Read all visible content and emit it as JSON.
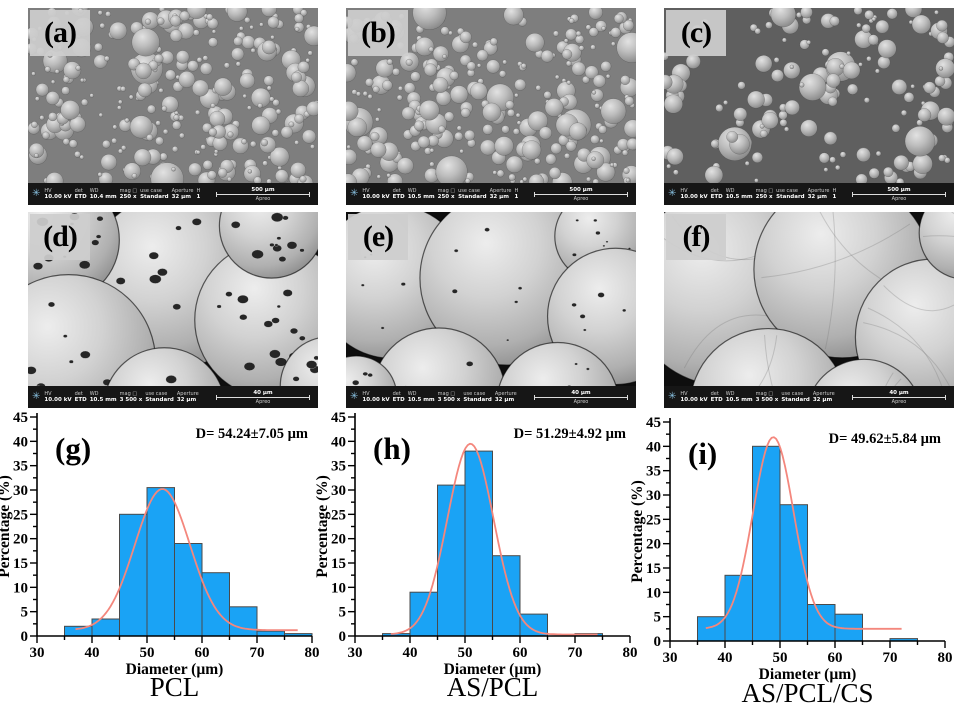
{
  "info_headers": {
    "hv": "HV",
    "det": "det",
    "wd": "WD",
    "mag": "mag □",
    "use_case": "use case",
    "aperture": "Aperture",
    "hfw": "HFW"
  },
  "sem_panels": [
    {
      "label": "(a)",
      "texture": "small-dense",
      "scale_label": "500 µm",
      "instrument": "Apreo",
      "info": {
        "hv": "10.00 kV",
        "det": "ETD",
        "wd": "10.4 mm",
        "mag": "250 x",
        "use_case": "Standard",
        "aperture": "32 µm",
        "hfw": "1.66 mm"
      }
    },
    {
      "label": "(b)",
      "texture": "small-dense",
      "scale_label": "500 µm",
      "instrument": "Apreo",
      "info": {
        "hv": "10.00 kV",
        "det": "ETD",
        "wd": "10.5 mm",
        "mag": "250 x",
        "use_case": "Standard",
        "aperture": "32 µm",
        "hfw": "1.66 mm"
      }
    },
    {
      "label": "(c)",
      "texture": "small-sparse",
      "scale_label": "500 µm",
      "instrument": "Apreo",
      "info": {
        "hv": "10.00 kV",
        "det": "ETD",
        "wd": "10.5 mm",
        "mag": "250 x",
        "use_case": "Standard",
        "aperture": "32 µm",
        "hfw": "1.66 mm"
      }
    },
    {
      "label": "(d)",
      "texture": "large-pores",
      "scale_label": "40 µm",
      "instrument": "Apreo",
      "info": {
        "hv": "10.00 kV",
        "det": "ETD",
        "wd": "10.5 mm",
        "mag": "3 500 x",
        "use_case": "Standard",
        "aperture": "32 µm",
        "hfw": "118 µm"
      }
    },
    {
      "label": "(e)",
      "texture": "large-few-pores",
      "scale_label": "40 µm",
      "instrument": "Apreo",
      "info": {
        "hv": "10.00 kV",
        "det": "ETD",
        "wd": "10.5 mm",
        "mag": "3 500 x",
        "use_case": "Standard",
        "aperture": "32 µm",
        "hfw": "118 µm"
      }
    },
    {
      "label": "(f)",
      "texture": "large-smooth",
      "scale_label": "40 µm",
      "instrument": "Apreo",
      "info": {
        "hv": "10.00 kV",
        "det": "ETD",
        "wd": "10.5 mm",
        "mag": "3 500 x",
        "use_case": "Standard",
        "aperture": "32 µm",
        "hfw": "118 µm"
      }
    }
  ],
  "chart_data": [
    {
      "type": "bar",
      "variant": "histogram",
      "panel_label": "(g)",
      "caption": "PCL",
      "annotation": "D= 54.24±7.05 µm",
      "xlabel": "Diameter (µm)",
      "ylabel": "Percentage (%)",
      "xlim": [
        30,
        80
      ],
      "ylim": [
        0,
        45
      ],
      "xtick_major": 10,
      "xtick_minor": 5,
      "ytick_major": 5,
      "ytick_minor": 2.5,
      "bin_start": 35,
      "bin_width": 5,
      "values": [
        2,
        3.5,
        25,
        30.5,
        19,
        13,
        6,
        1,
        0.5
      ],
      "fit": {
        "type": "gaussian",
        "amp": 29,
        "mean": 52.8,
        "sd": 5.0,
        "baseline": 1.2,
        "range": [
          37,
          77.5
        ]
      },
      "bar_color": "#1AA3F5",
      "bar_edge": "#4a4a4a",
      "curve_color": "#F4877D"
    },
    {
      "type": "bar",
      "variant": "histogram",
      "panel_label": "(h)",
      "caption": "AS/PCL",
      "annotation": "D= 51.29±4.92 µm",
      "xlabel": "Diameter (µm)",
      "ylabel": "Percentage (%)",
      "xlim": [
        30,
        80
      ],
      "ylim": [
        0,
        45
      ],
      "xtick_major": 10,
      "xtick_minor": 5,
      "ytick_major": 5,
      "ytick_minor": 2.5,
      "bin_start": 35,
      "bin_width": 5,
      "values": [
        0.5,
        9,
        31,
        38,
        16.5,
        4.5,
        0,
        0.5
      ],
      "fit": {
        "type": "gaussian",
        "amp": 39.2,
        "mean": 51.0,
        "sd": 4.2,
        "baseline": 0.3,
        "range": [
          36.5,
          74.5
        ]
      },
      "bar_color": "#1AA3F5",
      "bar_edge": "#4a4a4a",
      "curve_color": "#F4877D"
    },
    {
      "type": "bar",
      "variant": "histogram",
      "panel_label": "(i)",
      "caption": "AS/PCL/CS",
      "annotation": "D= 49.62±5.84 µm",
      "xlabel": "Diameter (µm)",
      "ylabel": "Percentage (%)",
      "xlim": [
        30,
        80
      ],
      "ylim": [
        0,
        45
      ],
      "xtick_major": 10,
      "xtick_minor": 5,
      "ytick_major": 5,
      "ytick_minor": 2.5,
      "bin_start": 35,
      "bin_width": 5,
      "values": [
        5,
        13.5,
        40,
        28,
        7.5,
        5.5,
        0,
        0.5
      ],
      "fit": {
        "type": "gaussian",
        "amp": 39.4,
        "mean": 48.8,
        "sd": 3.7,
        "baseline": 2.5,
        "range": [
          36.5,
          72.5
        ]
      },
      "bar_color": "#1AA3F5",
      "bar_edge": "#4a4a4a",
      "curve_color": "#F4877D"
    }
  ]
}
